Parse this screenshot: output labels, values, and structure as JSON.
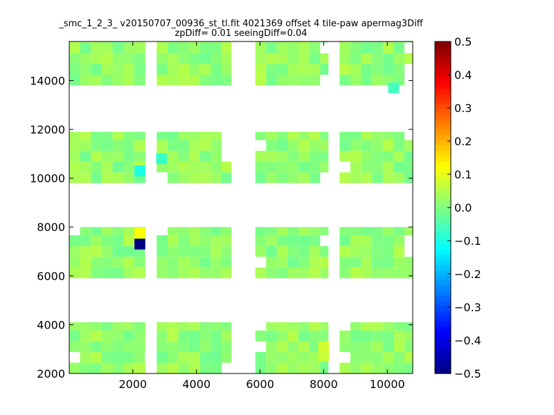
{
  "chart_data": {
    "type": "heatmap",
    "title_line1": "_smc_1_2_3_ v20150707_00936_st_tl.fit 4021369 offset 4 tile-paw apermag3Diff",
    "title_line2": "zpDiff= 0.01 seeingDiff=0.04",
    "xlim": [
      0,
      10800
    ],
    "ylim": [
      2000,
      15600
    ],
    "x_ticks": [
      "2000",
      "4000",
      "6000",
      "8000",
      "10000"
    ],
    "x_tick_values": [
      2000,
      4000,
      6000,
      8000,
      10000
    ],
    "y_ticks": [
      "2000",
      "4000",
      "6000",
      "8000",
      "10000",
      "12000",
      "14000"
    ],
    "y_tick_values": [
      2000,
      4000,
      6000,
      8000,
      10000,
      12000,
      14000
    ],
    "colorbar": {
      "range": [
        -0.5,
        0.5
      ],
      "ticks": [
        "0.5",
        "0.4",
        "0.3",
        "0.2",
        "0.1",
        "0.0",
        "−0.1",
        "−0.2",
        "−0.3",
        "−0.4",
        "−0.5"
      ],
      "tick_values": [
        0.5,
        0.4,
        0.3,
        0.2,
        0.1,
        0.0,
        -0.1,
        -0.2,
        -0.3,
        -0.4,
        -0.5
      ],
      "colormap": "jet"
    },
    "cell_size": {
      "dx": 340,
      "dy": 440
    },
    "background_value": 0.02,
    "band_y_ranges": [
      [
        2000,
        4100
      ],
      [
        5900,
        8000
      ],
      [
        9800,
        11900
      ],
      [
        13800,
        15600
      ]
    ],
    "band_x_ranges": [
      [
        0,
        2400
      ],
      [
        2750,
        5100
      ],
      [
        5850,
        8150
      ],
      [
        8500,
        10800
      ]
    ],
    "outliers": [
      {
        "x": 2220,
        "y": 7300,
        "value": -0.5
      },
      {
        "x": 2220,
        "y": 7750,
        "value": 0.12
      },
      {
        "x": 2220,
        "y": 10300,
        "value": -0.1
      },
      {
        "x": 2900,
        "y": 10800,
        "value": -0.07
      },
      {
        "x": 8000,
        "y": 3100,
        "value": 0.08
      },
      {
        "x": 8000,
        "y": 2700,
        "value": 0.07
      },
      {
        "x": 10200,
        "y": 13700,
        "value": -0.06
      }
    ]
  }
}
